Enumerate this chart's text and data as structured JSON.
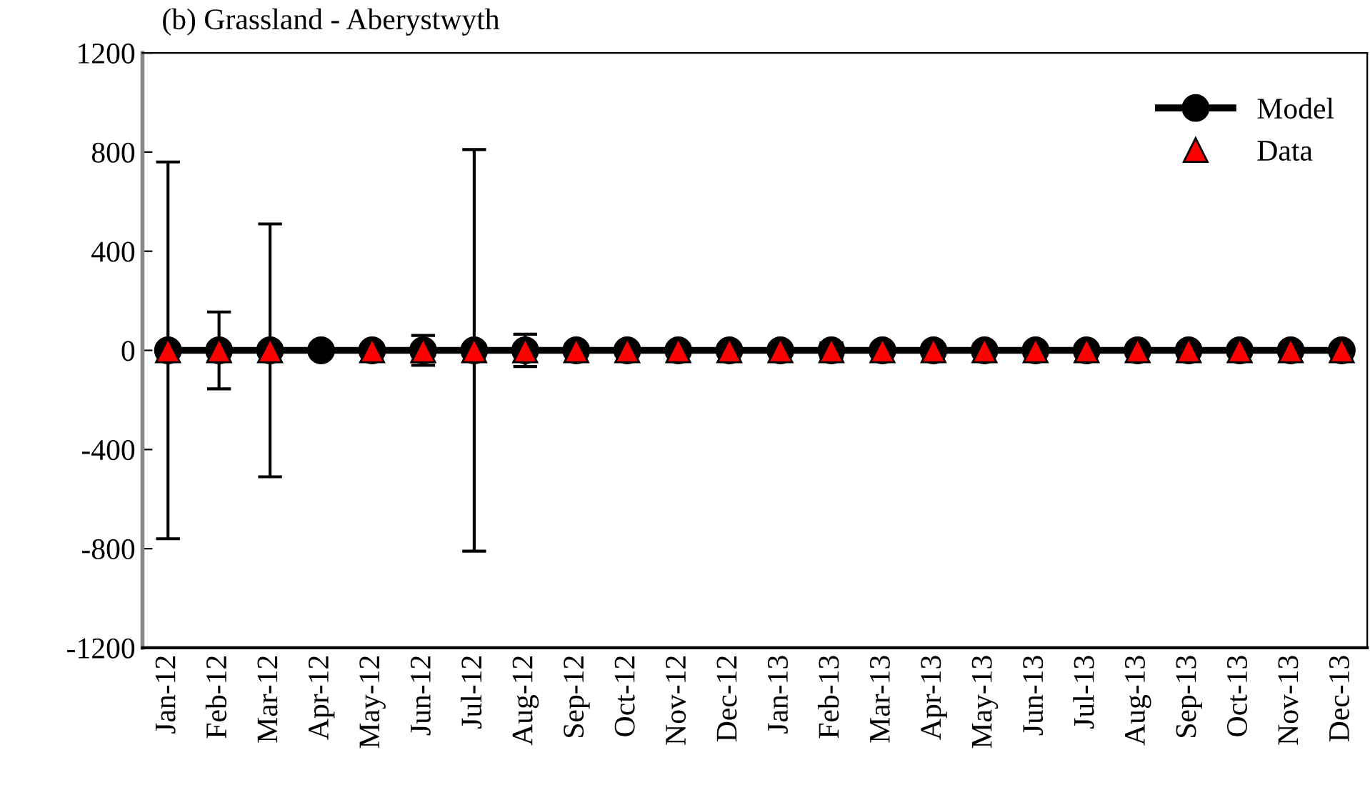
{
  "chart_data": {
    "type": "line",
    "title": "(b) Grassland - Aberystwyth",
    "categories": [
      "Jan-12",
      "Feb-12",
      "Mar-12",
      "Apr-12",
      "May-12",
      "Jun-12",
      "Jul-12",
      "Aug-12",
      "Sep-12",
      "Oct-12",
      "Nov-12",
      "Dec-12",
      "Jan-13",
      "Feb-13",
      "Mar-13",
      "Apr-13",
      "May-13",
      "Jun-13",
      "Jul-13",
      "Aug-13",
      "Sep-13",
      "Oct-13",
      "Nov-13",
      "Dec-13"
    ],
    "series": [
      {
        "name": "Model",
        "color": "#000000",
        "marker": "circle",
        "values": [
          0,
          0,
          0,
          0,
          0,
          0,
          0,
          0,
          0,
          0,
          0,
          0,
          0,
          0,
          0,
          0,
          0,
          0,
          0,
          0,
          0,
          0,
          0,
          0
        ]
      },
      {
        "name": "Data",
        "type": "scatter",
        "color": "#ff0000",
        "marker": "triangle",
        "values": [
          0,
          0,
          0,
          null,
          0,
          0,
          0,
          0,
          0,
          0,
          0,
          0,
          0,
          0,
          0,
          0,
          0,
          0,
          0,
          0,
          0,
          0,
          0,
          0
        ],
        "errors": [
          760,
          155,
          510,
          null,
          null,
          60,
          810,
          65,
          null,
          null,
          null,
          null,
          null,
          30,
          null,
          null,
          null,
          null,
          null,
          null,
          null,
          null,
          null,
          null
        ]
      }
    ],
    "ylim": [
      -1200,
      1200
    ],
    "yticks": [
      -1200,
      -800,
      -400,
      0,
      400,
      800,
      1200
    ],
    "grid": false,
    "legend": "top right"
  }
}
